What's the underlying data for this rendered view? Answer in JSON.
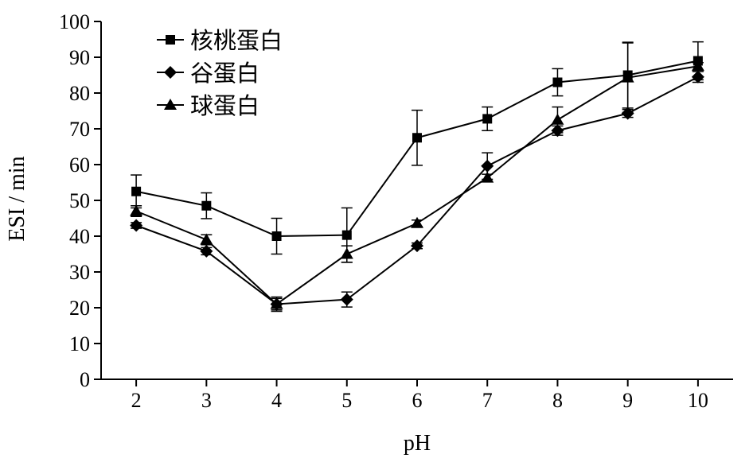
{
  "chart_data": {
    "type": "line",
    "xlabel": "pH",
    "ylabel": "ESI / min",
    "x": [
      2,
      3,
      4,
      5,
      6,
      7,
      8,
      9,
      10
    ],
    "xlim": [
      1.5,
      10.5
    ],
    "ylim": [
      0,
      100
    ],
    "yticks": [
      0,
      10,
      20,
      30,
      40,
      50,
      60,
      70,
      80,
      90,
      100
    ],
    "xticks": [
      2,
      3,
      4,
      5,
      6,
      7,
      8,
      9,
      10
    ],
    "legend_position": "top-left",
    "grid": false,
    "series": [
      {
        "name": "核桃蛋白",
        "marker": "square",
        "values": [
          52.5,
          48.5,
          40,
          40.3,
          67.5,
          72.8,
          83,
          85,
          89
        ],
        "errors": [
          4.6,
          3.6,
          5,
          7.6,
          7.7,
          3.3,
          3.8,
          9.2,
          5.3
        ]
      },
      {
        "name": "谷蛋白",
        "marker": "diamond",
        "values": [
          43,
          35.8,
          21,
          22.3,
          37.3,
          59.6,
          69.5,
          74.3,
          84.5
        ],
        "errors": [
          0.8,
          1,
          2,
          2.1,
          0.8,
          3.7,
          1.3,
          1.1,
          1.5
        ]
      },
      {
        "name": "球蛋白",
        "marker": "triangle",
        "values": [
          47,
          39,
          21,
          35,
          43.6,
          56.3,
          72.5,
          84.3,
          87.5
        ],
        "errors": [
          1.5,
          1.4,
          1.6,
          2.3,
          0.9,
          1,
          3.6,
          9.7,
          1
        ]
      }
    ]
  }
}
